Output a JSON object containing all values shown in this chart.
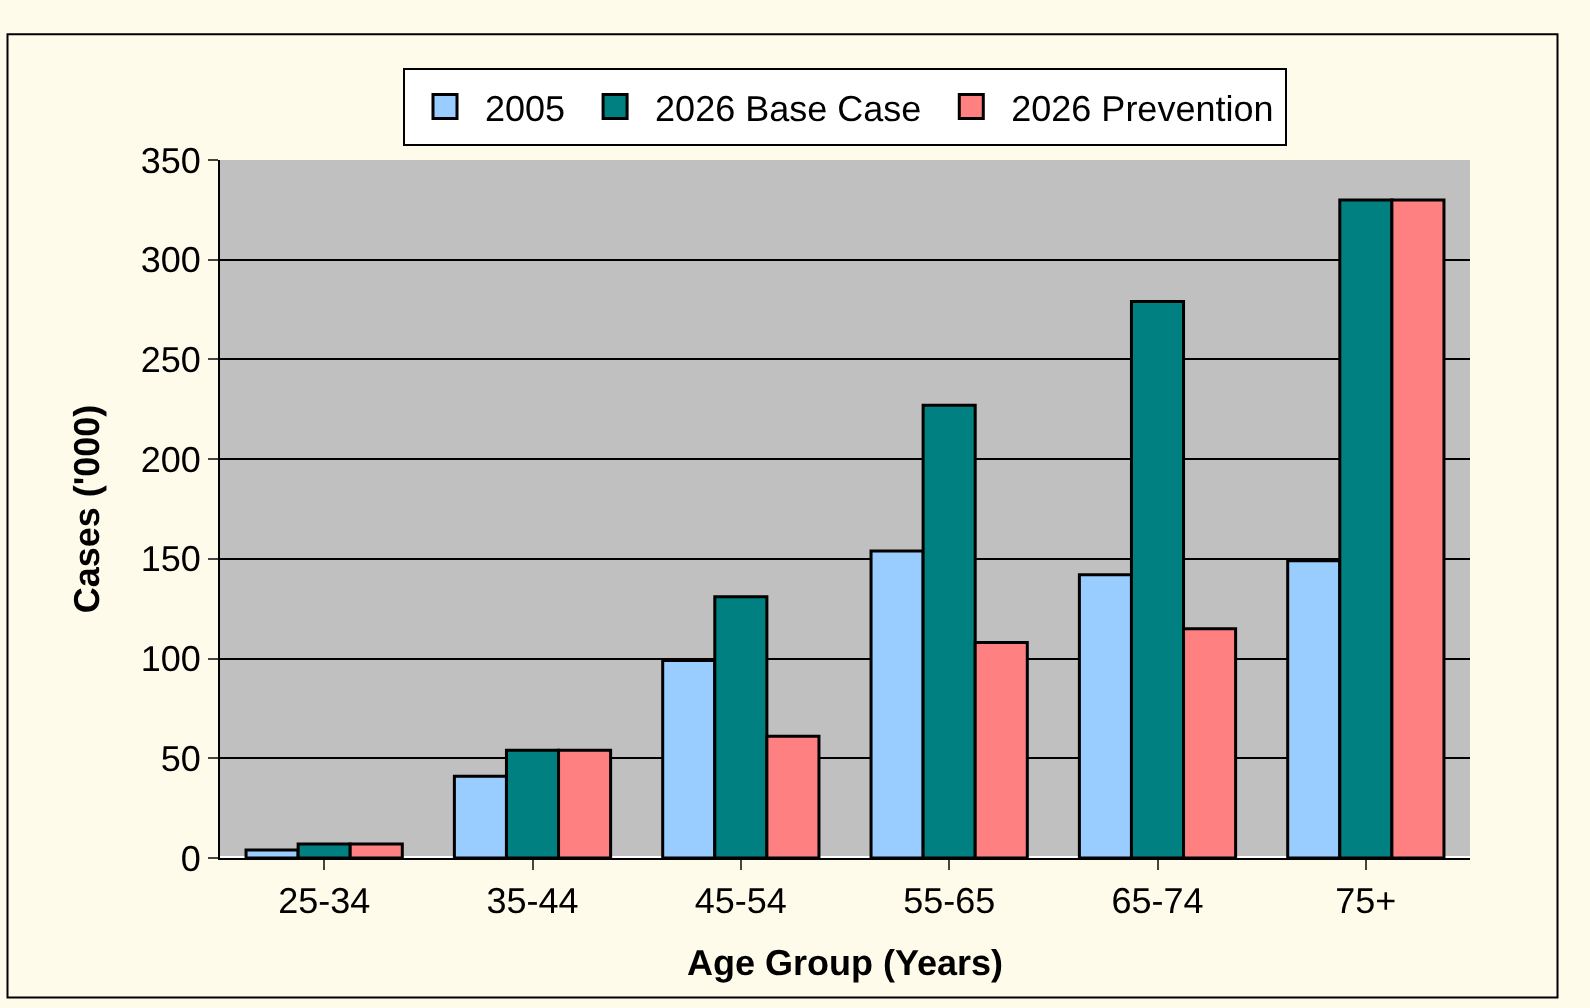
{
  "chart_data": {
    "type": "bar",
    "xlabel": "Age Group (Years)",
    "ylabel": "Cases ('000)",
    "categories": [
      "25-34",
      "35-44",
      "45-54",
      "55-65",
      "65-74",
      "75+"
    ],
    "series": [
      {
        "name": "2005",
        "color": "#99ccff",
        "values": [
          4,
          41,
          99,
          154,
          142,
          149
        ]
      },
      {
        "name": "2026 Base Case",
        "color": "#008080",
        "values": [
          7,
          54,
          131,
          227,
          279,
          330
        ]
      },
      {
        "name": "2026 Prevention",
        "color": "#ff8080",
        "values": [
          7,
          54,
          61,
          108,
          115,
          330
        ]
      }
    ],
    "ylim": [
      0,
      350
    ],
    "yticks": [
      0,
      50,
      100,
      150,
      200,
      250,
      300,
      350
    ],
    "grid": "y",
    "legend": "top"
  }
}
